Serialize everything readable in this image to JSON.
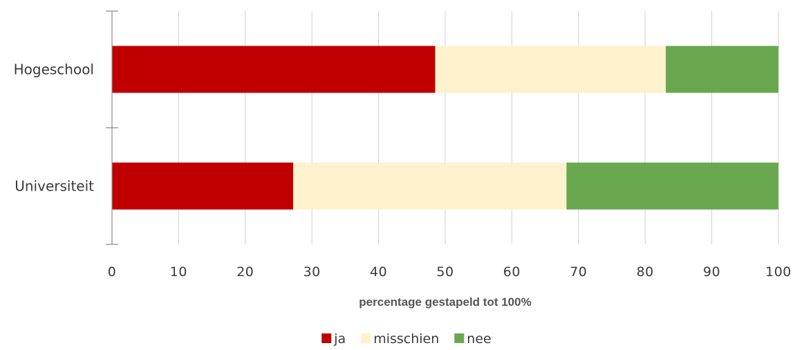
{
  "chart_data": {
    "type": "bar",
    "orientation": "horizontal",
    "stacked": true,
    "categories": [
      "Hogeschool",
      "Universiteit"
    ],
    "series": [
      {
        "name": "ja",
        "color": "#c00000",
        "values": [
          48.5,
          27.2
        ]
      },
      {
        "name": "misschien",
        "color": "#fff2cc",
        "values": [
          34.6,
          41.0
        ]
      },
      {
        "name": "nee",
        "color": "#6aa84f",
        "values": [
          16.9,
          31.8
        ]
      }
    ],
    "xlabel": "percentage gestapeld tot 100%",
    "ylabel": "",
    "xlim": [
      0,
      100
    ],
    "xticks": [
      "0",
      "10",
      "20",
      "30",
      "40",
      "50",
      "60",
      "70",
      "80",
      "90",
      "100"
    ],
    "grid": true,
    "legend_position": "bottom"
  }
}
